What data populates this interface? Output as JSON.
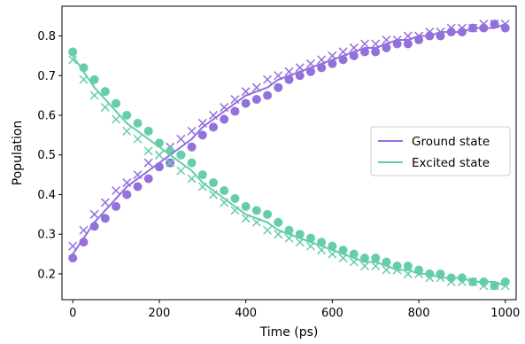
{
  "chart_data": {
    "type": "scatter",
    "xlabel": "Time (ps)",
    "ylabel": "Population",
    "xlim": [
      -25,
      1025
    ],
    "ylim": [
      0.135,
      0.875
    ],
    "xticks": [
      0,
      200,
      400,
      600,
      800,
      1000
    ],
    "yticks": [
      0.2,
      0.3,
      0.4,
      0.5,
      0.6,
      0.7,
      0.8
    ],
    "x_tick_labels": [
      "0",
      "200",
      "400",
      "600",
      "800",
      "1000"
    ],
    "y_tick_labels": [
      "0.2",
      "0.3",
      "0.4",
      "0.5",
      "0.6",
      "0.7",
      "0.8"
    ],
    "grid": false,
    "legend_position": "right",
    "x": [
      0,
      25,
      50,
      75,
      100,
      125,
      150,
      175,
      200,
      225,
      250,
      275,
      300,
      325,
      350,
      375,
      400,
      425,
      450,
      475,
      500,
      525,
      550,
      575,
      600,
      625,
      650,
      675,
      700,
      725,
      750,
      775,
      800,
      825,
      850,
      875,
      900,
      925,
      950,
      975,
      1000
    ],
    "series": [
      {
        "name": "Ground state",
        "role": "line",
        "color": "#9370DB",
        "values": [
          0.25,
          0.29,
          0.33,
          0.36,
          0.39,
          0.42,
          0.44,
          0.46,
          0.48,
          0.5,
          0.52,
          0.54,
          0.57,
          0.59,
          0.61,
          0.63,
          0.65,
          0.66,
          0.67,
          0.69,
          0.7,
          0.71,
          0.72,
          0.73,
          0.74,
          0.75,
          0.76,
          0.77,
          0.77,
          0.78,
          0.79,
          0.79,
          0.8,
          0.8,
          0.81,
          0.81,
          0.81,
          0.82,
          0.82,
          0.82,
          0.83
        ]
      },
      {
        "name": "Excited state",
        "role": "line",
        "color": "#66CDAA",
        "values": [
          0.75,
          0.71,
          0.67,
          0.64,
          0.61,
          0.58,
          0.56,
          0.54,
          0.52,
          0.5,
          0.48,
          0.46,
          0.43,
          0.41,
          0.39,
          0.37,
          0.35,
          0.34,
          0.33,
          0.31,
          0.3,
          0.29,
          0.28,
          0.27,
          0.26,
          0.25,
          0.24,
          0.23,
          0.23,
          0.22,
          0.21,
          0.21,
          0.2,
          0.2,
          0.19,
          0.19,
          0.19,
          0.18,
          0.18,
          0.18,
          0.17
        ]
      },
      {
        "role": "scatter-circle",
        "color": "#9370DB",
        "values": [
          0.24,
          0.28,
          0.32,
          0.34,
          0.37,
          0.4,
          0.42,
          0.44,
          0.47,
          0.48,
          0.5,
          0.52,
          0.55,
          0.57,
          0.59,
          0.61,
          0.63,
          0.64,
          0.65,
          0.67,
          0.69,
          0.7,
          0.71,
          0.72,
          0.73,
          0.74,
          0.75,
          0.76,
          0.76,
          0.77,
          0.78,
          0.78,
          0.79,
          0.8,
          0.8,
          0.81,
          0.81,
          0.82,
          0.82,
          0.83,
          0.82
        ]
      },
      {
        "role": "scatter-cross",
        "color": "#9370DB",
        "values": [
          0.27,
          0.31,
          0.35,
          0.38,
          0.41,
          0.43,
          0.45,
          0.48,
          0.5,
          0.52,
          0.54,
          0.56,
          0.58,
          0.6,
          0.62,
          0.64,
          0.66,
          0.67,
          0.69,
          0.7,
          0.71,
          0.72,
          0.73,
          0.74,
          0.75,
          0.76,
          0.77,
          0.78,
          0.78,
          0.79,
          0.79,
          0.8,
          0.8,
          0.81,
          0.81,
          0.82,
          0.82,
          0.82,
          0.83,
          0.83,
          0.83
        ]
      },
      {
        "role": "scatter-circle",
        "color": "#66CDAA",
        "values": [
          0.76,
          0.72,
          0.69,
          0.66,
          0.63,
          0.6,
          0.58,
          0.56,
          0.53,
          0.51,
          0.5,
          0.48,
          0.45,
          0.43,
          0.41,
          0.39,
          0.37,
          0.36,
          0.35,
          0.33,
          0.31,
          0.3,
          0.29,
          0.28,
          0.27,
          0.26,
          0.25,
          0.24,
          0.24,
          0.23,
          0.22,
          0.22,
          0.21,
          0.2,
          0.2,
          0.19,
          0.19,
          0.18,
          0.18,
          0.17,
          0.18
        ]
      },
      {
        "role": "scatter-cross",
        "color": "#66CDAA",
        "values": [
          0.74,
          0.69,
          0.65,
          0.62,
          0.59,
          0.56,
          0.54,
          0.51,
          0.5,
          0.48,
          0.46,
          0.44,
          0.42,
          0.4,
          0.38,
          0.36,
          0.34,
          0.33,
          0.31,
          0.3,
          0.29,
          0.28,
          0.27,
          0.26,
          0.25,
          0.24,
          0.23,
          0.22,
          0.22,
          0.21,
          0.21,
          0.2,
          0.2,
          0.19,
          0.19,
          0.18,
          0.18,
          0.18,
          0.17,
          0.17,
          0.17
        ]
      }
    ]
  }
}
